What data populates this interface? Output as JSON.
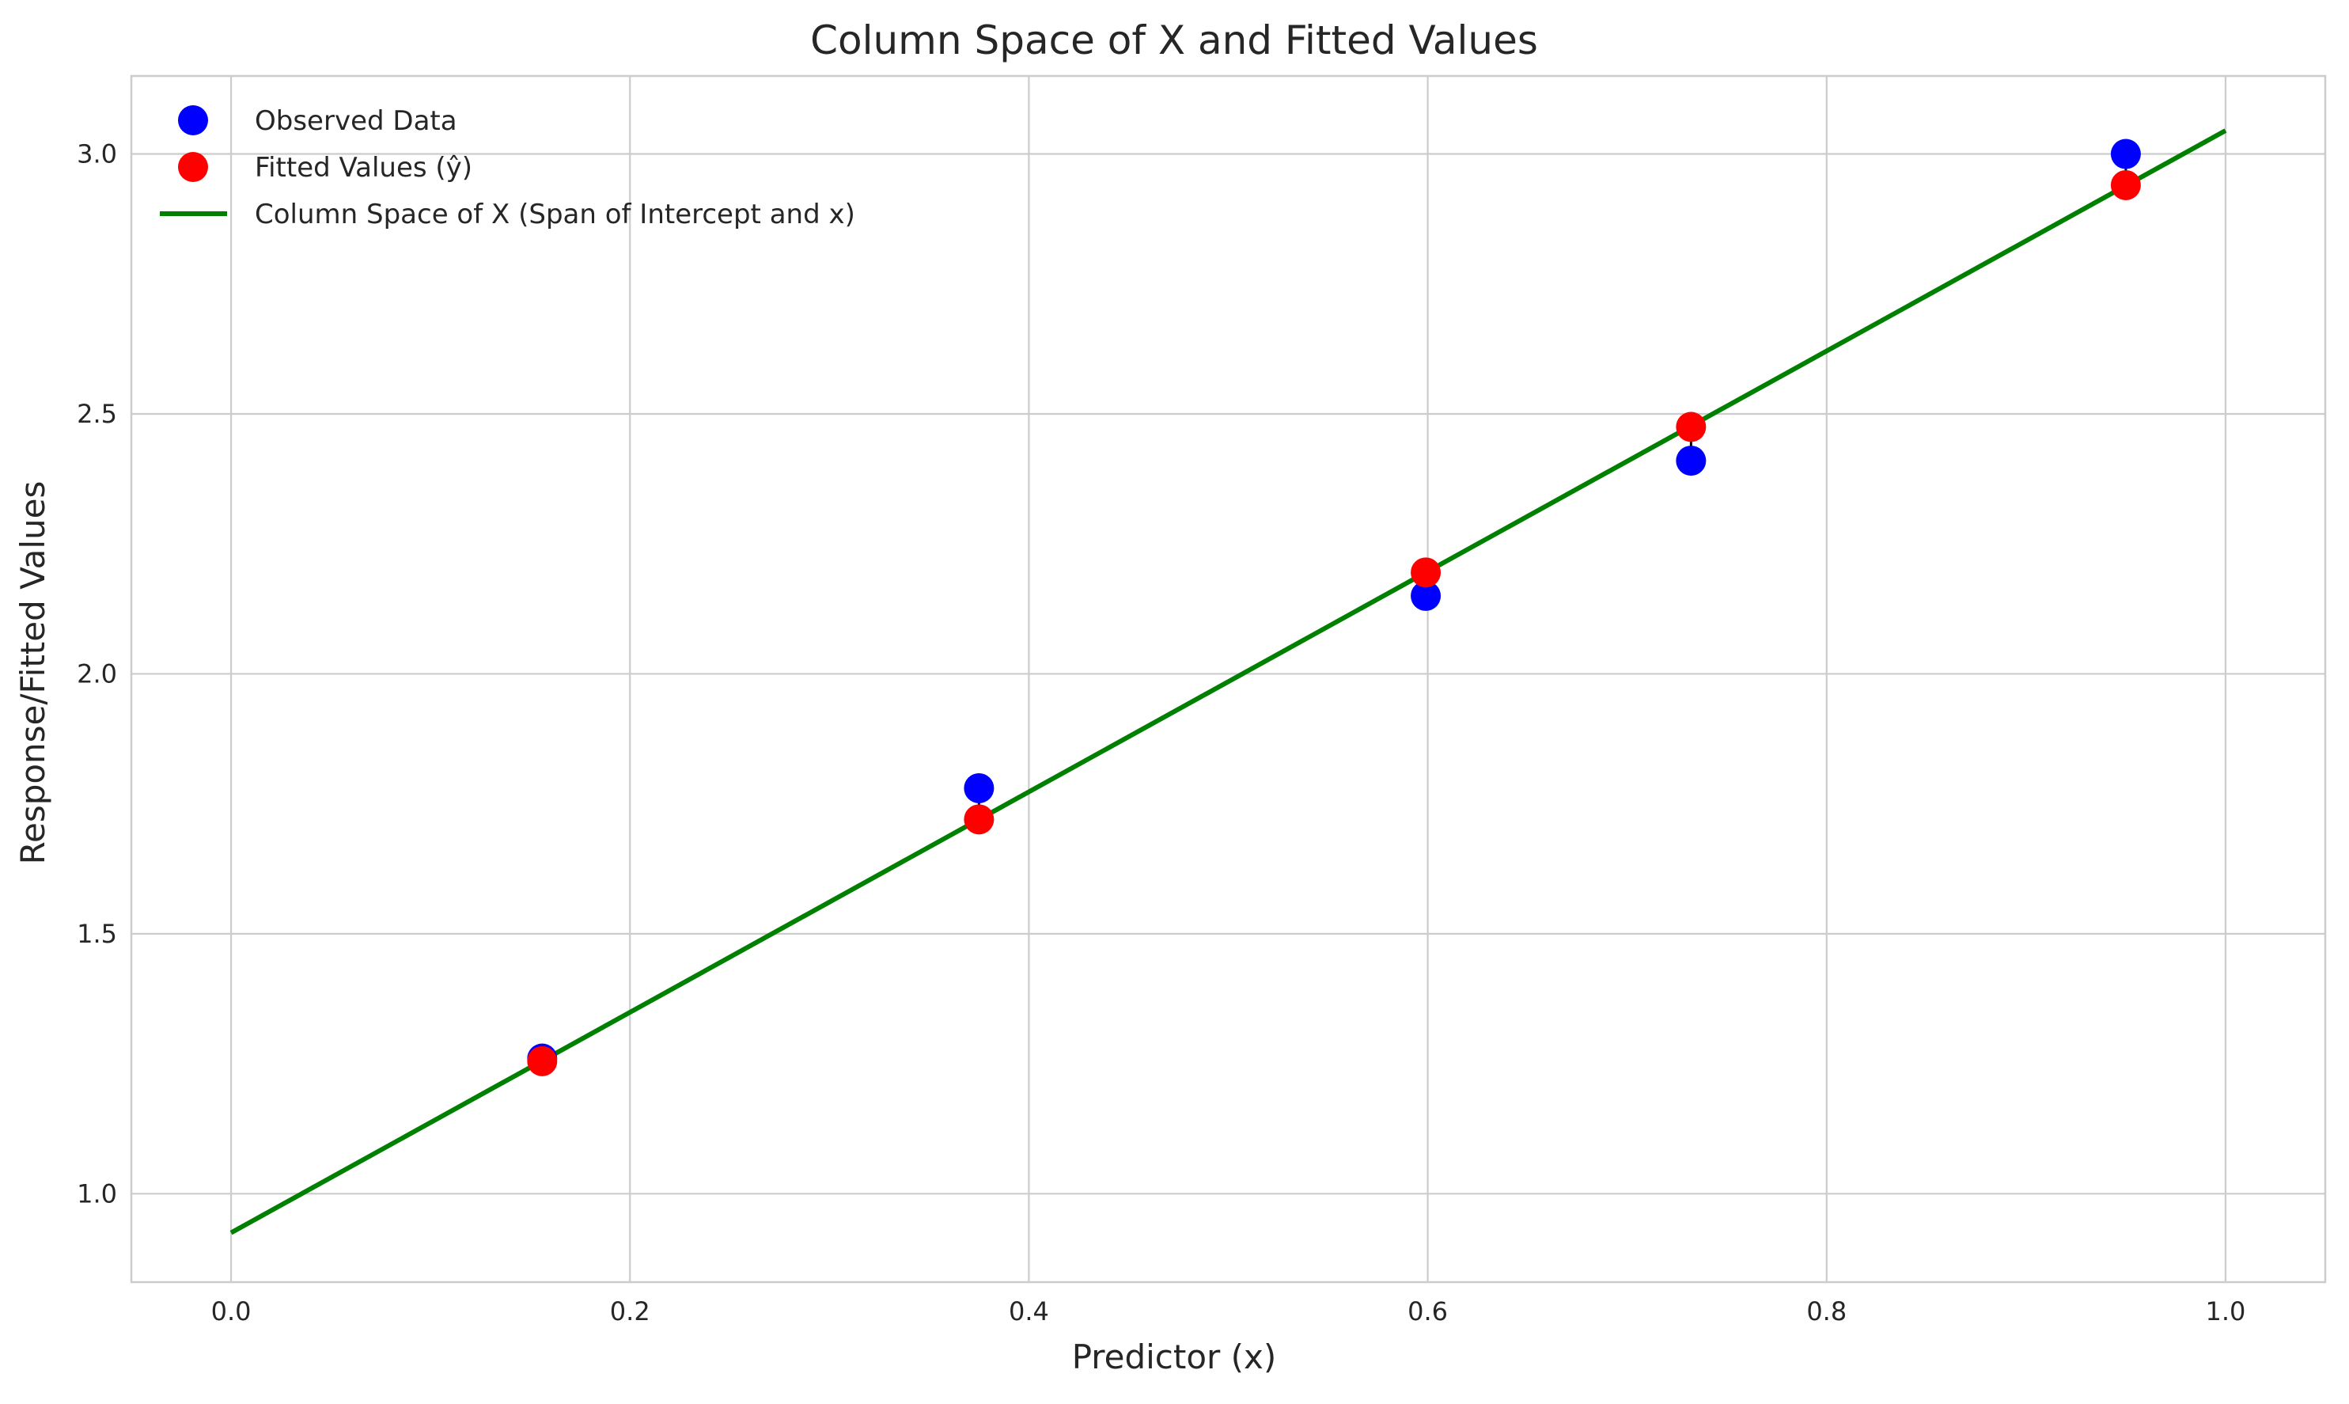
{
  "chart_data": {
    "type": "scatter",
    "title": "Column Space of X and Fitted Values",
    "xlabel": "Predictor (x)",
    "ylabel": "Response/Fitted Values",
    "xlim": [
      -0.05,
      1.05
    ],
    "ylim": [
      0.83,
      3.15
    ],
    "xticks": [
      0.0,
      0.2,
      0.4,
      0.6,
      0.8,
      1.0
    ],
    "xtick_labels": [
      "0.0",
      "0.2",
      "0.4",
      "0.6",
      "0.8",
      "1.0"
    ],
    "yticks": [
      1.0,
      1.5,
      2.0,
      2.5,
      3.0
    ],
    "ytick_labels": [
      "1.0",
      "1.5",
      "2.0",
      "2.5",
      "3.0"
    ],
    "grid": true,
    "legend_position": "top-left",
    "series": [
      {
        "name": "Observed Data",
        "kind": "scatter",
        "color": "#0000ff",
        "x": [
          0.156,
          0.375,
          0.599,
          0.732,
          0.95
        ],
        "y": [
          1.26,
          1.78,
          2.15,
          2.41,
          3.0
        ]
      },
      {
        "name": "Fitted Values (ŷ)",
        "kind": "scatter",
        "color": "#ff0000",
        "x": [
          0.156,
          0.375,
          0.599,
          0.732,
          0.95
        ],
        "y": [
          1.255,
          1.72,
          2.195,
          2.475,
          2.94
        ]
      },
      {
        "name": "Column Space of X (Span of Intercept and x)",
        "kind": "line",
        "color": "#008000",
        "x": [
          0.0,
          1.0
        ],
        "y": [
          0.925,
          3.045
        ]
      }
    ],
    "residual_line_color": "#000000",
    "grid_color": "#cccccc",
    "axis_color": "#cccccc"
  }
}
